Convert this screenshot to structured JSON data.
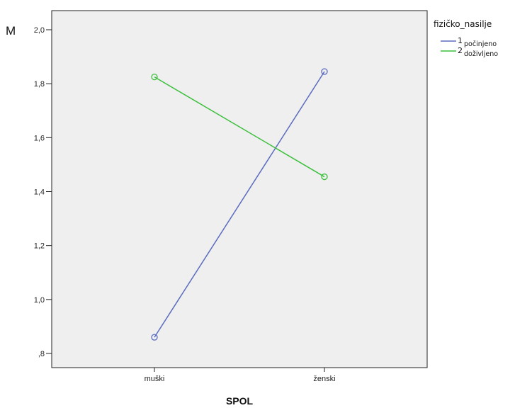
{
  "chart_data": {
    "type": "line",
    "xlabel": "SPOL",
    "ylabel": "M",
    "categories": [
      "muški",
      "ženski"
    ],
    "ylim": [
      0.75,
      2.05
    ],
    "yticks": [
      {
        "value": 0.8,
        "label": ",8"
      },
      {
        "value": 1.0,
        "label": "1,0"
      },
      {
        "value": 1.2,
        "label": "1,2"
      },
      {
        "value": 1.4,
        "label": "1,4"
      },
      {
        "value": 1.6,
        "label": "1,6"
      },
      {
        "value": 1.8,
        "label": "1,8"
      },
      {
        "value": 2.0,
        "label": "2,0"
      }
    ],
    "grid": false,
    "plot_background": "#efefef",
    "legend": {
      "title": "fizičko_nasilje",
      "placement": "top-right outside"
    },
    "series": [
      {
        "num": "1",
        "name": "počinjeno",
        "color": "#5b6cbf",
        "values": [
          0.86,
          1.845
        ]
      },
      {
        "num": "2",
        "name": "doživljeno",
        "color": "#3cbf3c",
        "values": [
          1.825,
          1.455
        ]
      }
    ]
  }
}
